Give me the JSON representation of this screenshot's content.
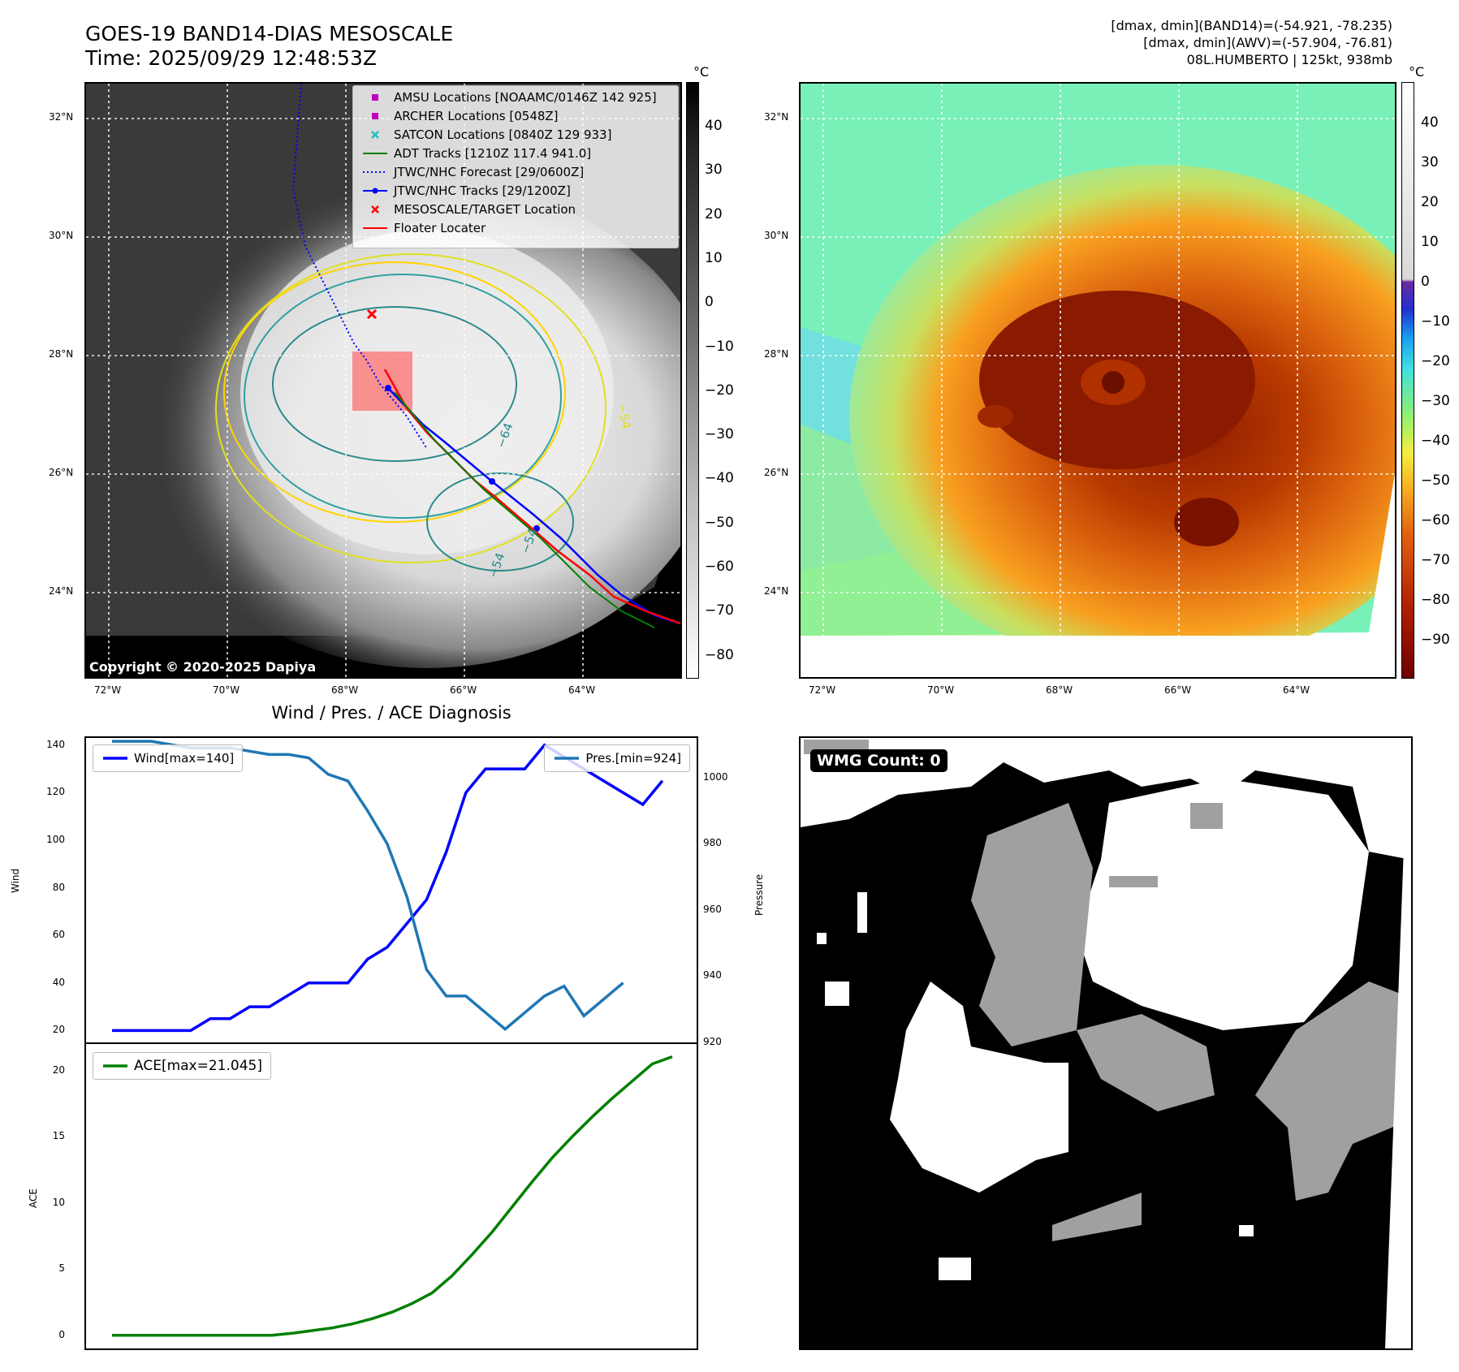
{
  "header": {
    "title_line1": "GOES-19 BAND14-DIAS MESOSCALE",
    "title_line2": "Time: 2025/09/29 12:48:53Z",
    "info_line1": "[dmax, dmin](BAND14)=(-54.921, -78.235)",
    "info_line2": "[dmax, dmin](AWV)=(-57.904, -76.81)",
    "info_line3": "08L.HUMBERTO | 125kt, 938mb"
  },
  "map_axes": {
    "lat_labels": [
      "32°N",
      "30°N",
      "28°N",
      "26°N",
      "24°N"
    ],
    "lon_labels": [
      "72°W",
      "70°W",
      "68°W",
      "66°W",
      "64°W"
    ]
  },
  "ir_panel": {
    "copyright": "Copyright © 2020-2025 Dapiya",
    "colorbar_unit": "°C",
    "colorbar_ticks": [
      "40",
      "30",
      "20",
      "10",
      "0",
      "−10",
      "−20",
      "−30",
      "−40",
      "−50",
      "−60",
      "−70",
      "−80"
    ],
    "contour_labels": [
      "−64",
      "−54",
      "−54",
      "−54"
    ],
    "legend": [
      {
        "label": "AMSU Locations [NOAAMC/0146Z 142 925]",
        "symbol": "square",
        "color": "#c000c0"
      },
      {
        "label": "ARCHER Locations [0548Z]",
        "symbol": "square",
        "color": "#c000c0"
      },
      {
        "label": "SATCON Locations [0840Z 129 933]",
        "symbol": "x",
        "color": "#20c0c0"
      },
      {
        "label": "ADT Tracks [1210Z 117.4 941.0]",
        "symbol": "line",
        "color": "#008000"
      },
      {
        "label": "JTWC/NHC Forecast [29/0600Z]",
        "symbol": "dotted",
        "color": "#0000ff"
      },
      {
        "label": "JTWC/NHC Tracks [29/1200Z]",
        "symbol": "line-dot",
        "color": "#0000ff"
      },
      {
        "label": "MESOSCALE/TARGET Location",
        "symbol": "x",
        "color": "#ff0000"
      },
      {
        "label": "Floater Locater",
        "symbol": "line",
        "color": "#ff0000"
      }
    ]
  },
  "awv_panel": {
    "colorbar_unit": "°C",
    "colorbar_ticks": [
      "40",
      "30",
      "20",
      "10",
      "0",
      "−10",
      "−20",
      "−30",
      "−40",
      "−50",
      "−60",
      "−70",
      "−80",
      "−90"
    ]
  },
  "wmg_panel": {
    "label": "WMG Count: 0"
  },
  "colors": {
    "wind": "#0000ff",
    "pressure": "#1f77b4",
    "ace": "#008000"
  },
  "chart_data": [
    {
      "type": "line",
      "title": "Wind / Pres. / ACE Diagnosis",
      "ylabel": "Wind",
      "y2label": "Pressure",
      "ylim": [
        15,
        143
      ],
      "y2lim": [
        920,
        1012
      ],
      "yticks": [
        "140",
        "120",
        "100",
        "80",
        "60",
        "40",
        "20"
      ],
      "y2ticks": [
        "1000",
        "980",
        "960",
        "940",
        "920"
      ],
      "x": [
        0,
        1,
        2,
        3,
        4,
        5,
        6,
        7,
        8,
        9,
        10,
        11,
        12,
        13,
        14,
        15,
        16,
        17,
        18,
        19,
        20,
        21,
        22,
        23,
        24,
        25,
        26,
        27,
        28,
        29
      ],
      "series": [
        {
          "name": "Wind[max=140]",
          "axis": "left",
          "values": [
            20,
            20,
            20,
            20,
            20,
            25,
            25,
            30,
            30,
            35,
            40,
            40,
            40,
            50,
            55,
            65,
            75,
            95,
            120,
            130,
            130,
            130,
            140,
            135,
            130,
            125,
            120,
            115,
            125,
            null
          ]
        },
        {
          "name": "Pres.[min=924]",
          "axis": "right",
          "values": [
            1011,
            1011,
            1011,
            1010,
            1009,
            1009,
            1009,
            1008,
            1007,
            1007,
            1006,
            1001,
            999,
            990,
            980,
            964,
            942,
            934,
            934,
            929,
            924,
            929,
            934,
            937,
            928,
            933,
            938,
            null,
            null,
            null
          ]
        }
      ]
    },
    {
      "type": "line",
      "ylabel": "ACE",
      "ylim": [
        -1,
        22
      ],
      "yticks": [
        "20",
        "15",
        "10",
        "5",
        "0"
      ],
      "x": [
        0,
        1,
        2,
        3,
        4,
        5,
        6,
        7,
        8,
        9,
        10,
        11,
        12,
        13,
        14,
        15,
        16,
        17,
        18,
        19,
        20,
        21,
        22,
        23,
        24,
        25,
        26,
        27,
        28
      ],
      "series": [
        {
          "name": "ACE[max=21.045]",
          "values": [
            0,
            0,
            0,
            0,
            0,
            0,
            0,
            0,
            0,
            0.15,
            0.35,
            0.55,
            0.85,
            1.25,
            1.75,
            2.4,
            3.2,
            4.5,
            6.1,
            7.8,
            9.7,
            11.6,
            13.4,
            15.0,
            16.5,
            17.9,
            19.2,
            20.5,
            21.045
          ]
        }
      ]
    }
  ]
}
